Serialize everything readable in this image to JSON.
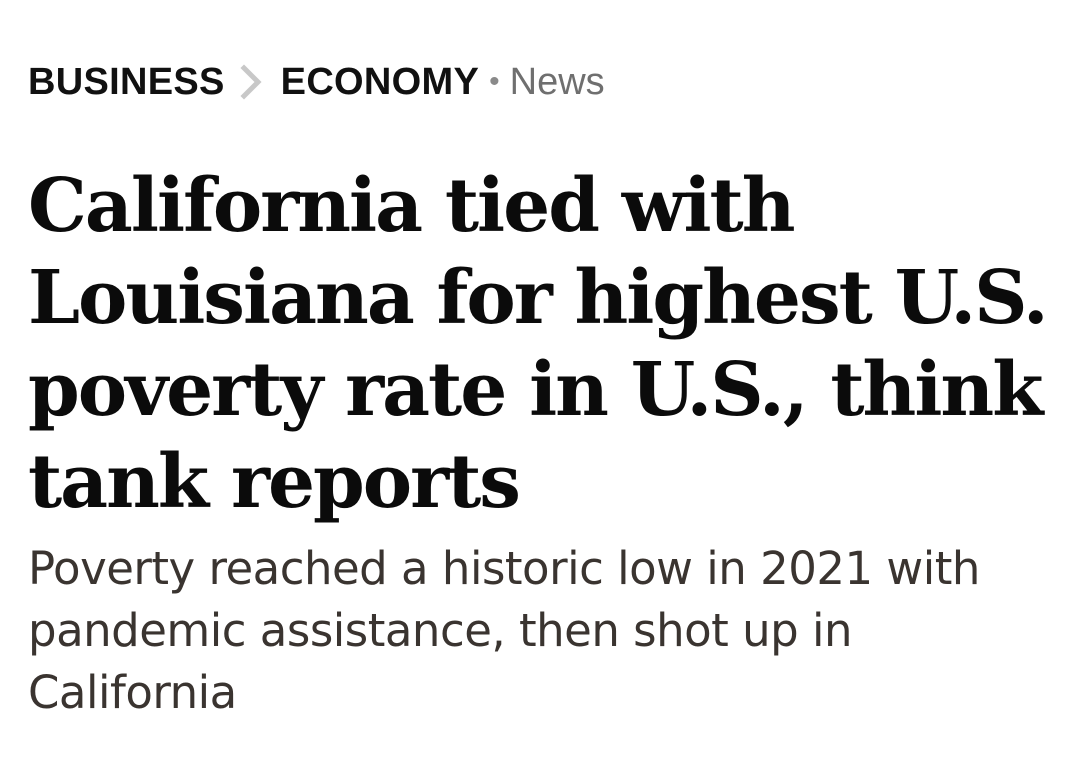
{
  "breadcrumb": {
    "section": "BUSINESS",
    "subsection": "ECONOMY",
    "separator_dot": "•",
    "label": "News"
  },
  "article": {
    "headline": "California tied with Louisiana for highest U.S. poverty rate in U.S., think tank reports",
    "dek": "Poverty reached a historic low in 2021 with pandemic assistance, then shot up in California"
  },
  "colors": {
    "headline": "#0b0b0b",
    "dek": "#3a3430",
    "label": "#6f6f6f",
    "chevron": "#c8c8c8"
  },
  "icons": {
    "breadcrumb_separator": "chevron-right-icon"
  }
}
